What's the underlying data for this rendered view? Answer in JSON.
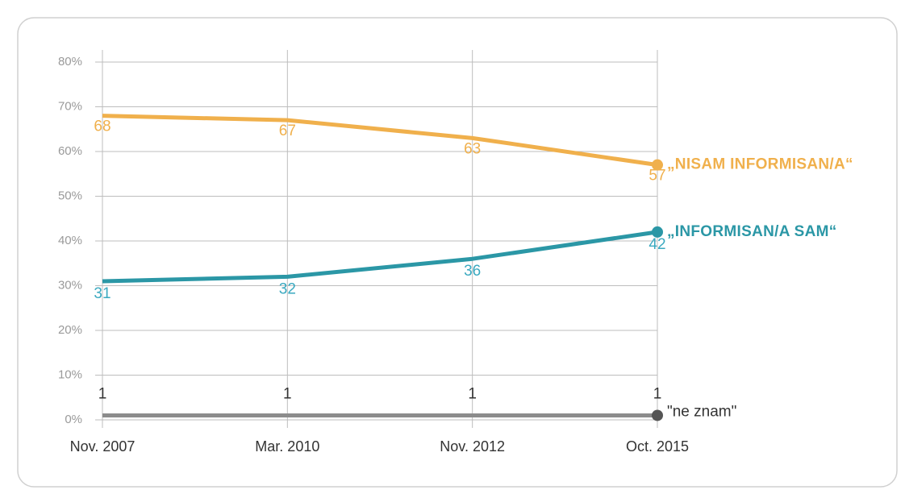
{
  "chart_data": {
    "type": "line",
    "categories": [
      "Nov. 2007",
      "Mar. 2010",
      "Nov. 2012",
      "Oct. 2015"
    ],
    "series": [
      {
        "name": "„NISAM INFORMISAN/A“",
        "color": "#f0b04c",
        "values": [
          68,
          67,
          63,
          57
        ]
      },
      {
        "name": "„INFORMISAN/A SAM“",
        "color": "#2b97a6",
        "values": [
          31,
          32,
          36,
          42
        ]
      },
      {
        "name": "\"ne znam\"",
        "color": "#8c8c8c",
        "values": [
          1,
          1,
          1,
          1
        ]
      }
    ],
    "ylim": [
      0,
      80
    ],
    "yticks": [
      {
        "value": 0,
        "label": "0%"
      },
      {
        "value": 10,
        "label": "10%"
      },
      {
        "value": 20,
        "label": "20%"
      },
      {
        "value": 30,
        "label": "30%"
      },
      {
        "value": 40,
        "label": "40%"
      },
      {
        "value": 50,
        "label": "50%"
      },
      {
        "value": 60,
        "label": "60%"
      },
      {
        "value": 70,
        "label": "70%"
      },
      {
        "value": 80,
        "label": "80%"
      }
    ],
    "grid": true
  }
}
